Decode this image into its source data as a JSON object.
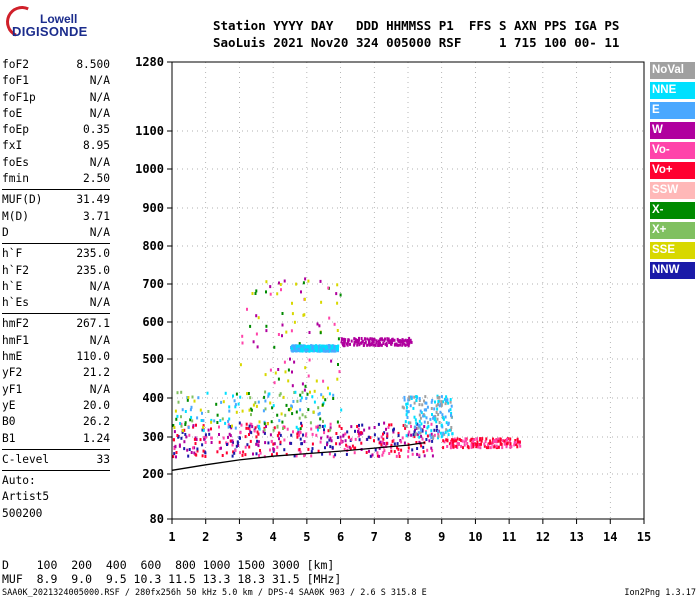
{
  "logo": {
    "line1": "Lowell",
    "line2": "DIGISONDE"
  },
  "header": {
    "line1": "Station YYYY DAY   DDD HHMMSS P1  FFS S AXN PPS IGA PS",
    "line2": "SaoLuis 2021 Nov20 324 005000 RSF     1 715 100 00- 11"
  },
  "params_group1": [
    {
      "name": "foF2",
      "value": "8.500"
    },
    {
      "name": "foF1",
      "value": "N/A"
    },
    {
      "name": "foF1p",
      "value": "N/A"
    },
    {
      "name": "foE",
      "value": "N/A"
    },
    {
      "name": "foEp",
      "value": "0.35"
    },
    {
      "name": "fxI",
      "value": "8.95"
    },
    {
      "name": "foEs",
      "value": "N/A"
    },
    {
      "name": "fmin",
      "value": "2.50"
    }
  ],
  "params_group2": [
    {
      "name": "MUF(D)",
      "value": "31.49"
    },
    {
      "name": "M(D)",
      "value": "3.71"
    },
    {
      "name": "D",
      "value": "N/A"
    }
  ],
  "params_group3": [
    {
      "name": "h`F",
      "value": "235.0"
    },
    {
      "name": "h`F2",
      "value": "235.0"
    },
    {
      "name": "h`E",
      "value": "N/A"
    },
    {
      "name": "h`Es",
      "value": "N/A"
    }
  ],
  "params_group4": [
    {
      "name": "hmF2",
      "value": "267.1"
    },
    {
      "name": "hmF1",
      "value": "N/A"
    },
    {
      "name": "hmE",
      "value": "110.0"
    },
    {
      "name": "yF2",
      "value": "21.2"
    },
    {
      "name": "yF1",
      "value": "N/A"
    },
    {
      "name": "yE",
      "value": "20.0"
    },
    {
      "name": "B0",
      "value": "26.2"
    },
    {
      "name": "B1",
      "value": "1.24"
    }
  ],
  "params_group5": [
    {
      "name": "C-level",
      "value": "33"
    }
  ],
  "auto_block": [
    "Auto:",
    "Artist5",
    "500200"
  ],
  "legend": [
    {
      "label": "NoVal",
      "color": "#a0a0a0"
    },
    {
      "label": "NNE",
      "color": "#00e0ff"
    },
    {
      "label": "E",
      "color": "#4aa8ff"
    },
    {
      "label": "W",
      "color": "#b0009e"
    },
    {
      "label": "Vo-",
      "color": "#ff44aa"
    },
    {
      "label": "Vo+",
      "color": "#ff0030"
    },
    {
      "label": "SSW",
      "color": "#ffb8b8"
    },
    {
      "label": "X-",
      "color": "#008a00"
    },
    {
      "label": "X+",
      "color": "#80c060"
    },
    {
      "label": "SSE",
      "color": "#d8d800"
    },
    {
      "label": "NNW",
      "color": "#1a1aa8"
    }
  ],
  "footer": {
    "d_line": "D    100  200  400  600  800 1000 1500 3000 [km]",
    "muf_line": "MUF  8.9  9.0  9.5 10.3 11.5 13.3 18.3 31.5 [MHz]",
    "file_line": "SAA0K_2021324005000.RSF / 280fx256h 50 kHz 5.0 km / DPS-4 SAA0K 903 / 2.6 S 315.8 E",
    "version": "Ion2Png 1.3.17"
  },
  "chart_data": {
    "type": "scatter",
    "title": "",
    "xlabel": "",
    "ylabel": "",
    "xlim": [
      1,
      15
    ],
    "ylim": [
      80,
      1280
    ],
    "x_ticks": [
      "1",
      "2",
      "3",
      "4",
      "5",
      "6",
      "7",
      "8",
      "9",
      "10",
      "11",
      "12",
      "13",
      "14",
      "15"
    ],
    "y_ticks": [
      "80",
      "200",
      "300",
      "400",
      "500",
      "600",
      "700",
      "800",
      "900",
      "1000",
      "1100",
      "1280"
    ],
    "y_tick_values": [
      80,
      200,
      300,
      400,
      500,
      600,
      700,
      800,
      900,
      1000,
      1100,
      1280
    ],
    "y_scale": "nonlinear (ionogram height, compressed at top)",
    "grid": true,
    "trace": {
      "name": "",
      "x": [
        1.0,
        2.0,
        3.0,
        4.0,
        5.0,
        6.0,
        7.0,
        8.0,
        8.5
      ],
      "y": [
        210,
        225,
        238,
        248,
        255,
        262,
        270,
        278,
        285
      ]
    },
    "clusters": [
      {
        "x_range": [
          1.0,
          8.9
        ],
        "y_range": [
          250,
          340
        ],
        "colors": [
          "#ff0030",
          "#b0009e",
          "#ff44aa",
          "#1a1aa8"
        ],
        "density": "high"
      },
      {
        "x_range": [
          9.0,
          11.3
        ],
        "y_range": [
          275,
          300
        ],
        "colors": [
          "#ff0030",
          "#ff44aa"
        ],
        "density": "medium"
      },
      {
        "x_range": [
          1.0,
          6.0
        ],
        "y_range": [
          320,
          420
        ],
        "colors": [
          "#00e0ff",
          "#d8d800",
          "#008a00",
          "#80c060",
          "#4aa8ff"
        ],
        "density": "medium"
      },
      {
        "x_range": [
          7.8,
          9.3
        ],
        "y_range": [
          300,
          410
        ],
        "colors": [
          "#4aa8ff",
          "#00e0ff",
          "#a0a0a0"
        ],
        "density": "medium"
      },
      {
        "x_range": [
          3.0,
          6.0
        ],
        "y_range": [
          420,
          720
        ],
        "colors": [
          "#b0009e",
          "#ff44aa",
          "#d8d800",
          "#008a00"
        ],
        "density": "low"
      },
      {
        "x_range": [
          4.5,
          5.9
        ],
        "y_range": [
          525,
          540
        ],
        "colors": [
          "#4aa8ff",
          "#00e0ff"
        ],
        "density": "high"
      },
      {
        "x_range": [
          6.0,
          8.1
        ],
        "y_range": [
          540,
          560
        ],
        "colors": [
          "#b0009e"
        ],
        "density": "medium"
      }
    ]
  }
}
